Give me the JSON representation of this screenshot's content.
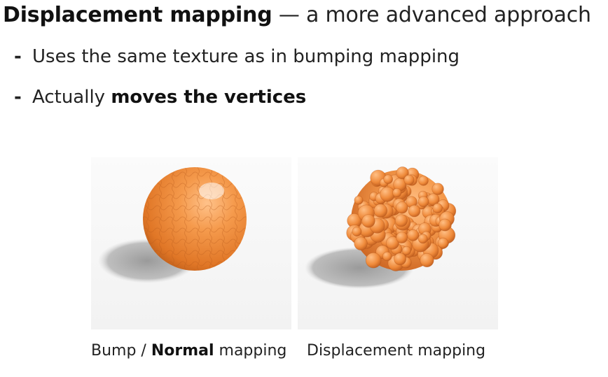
{
  "slide": {
    "title_bold": "Displacement mapping",
    "title_rest": " — a more advanced approach",
    "bullets": [
      {
        "dash": "-",
        "text": "Uses the same texture as in bumping mapping"
      },
      {
        "dash": "-",
        "text_before": "Actually ",
        "text_bold": "moves the vertices"
      }
    ]
  },
  "figures": {
    "left": {
      "caption_before": "Bump / ",
      "caption_bold": "Normal",
      "caption_after": " mapping"
    },
    "right": {
      "caption": "Displacement mapping"
    }
  },
  "colors": {
    "sphere": "#f08a3c",
    "sphere_dark": "#c8601e",
    "shadow": "#9a9a9a"
  }
}
